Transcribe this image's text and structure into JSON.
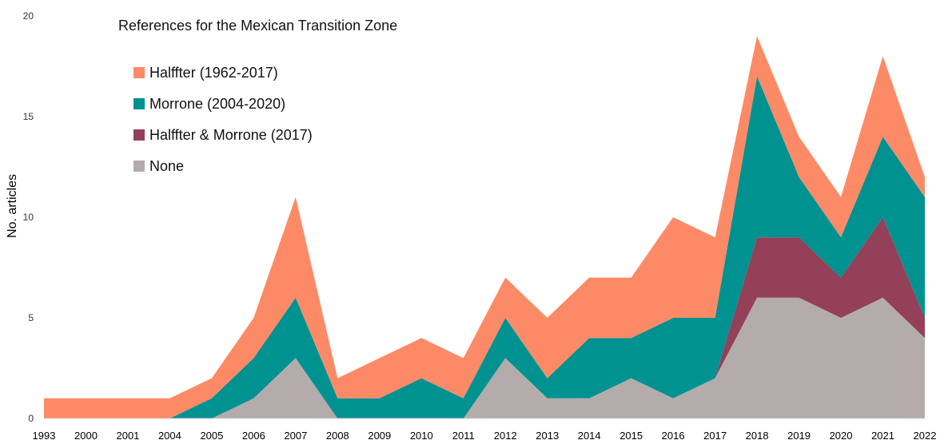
{
  "chart_data": {
    "type": "area",
    "stacked": true,
    "title": "References for the Mexican Transition Zone",
    "xlabel": "",
    "ylabel": "No. articles",
    "ylim": [
      0,
      20
    ],
    "yticks": [
      0,
      5,
      10,
      15,
      20
    ],
    "grid": false,
    "legend_position": "top-left",
    "categories": [
      "1993",
      "2000",
      "2001",
      "2004",
      "2005",
      "2006",
      "2007",
      "2008",
      "2009",
      "2010",
      "2011",
      "2012",
      "2013",
      "2014",
      "2015",
      "2016",
      "2017",
      "2018",
      "2019",
      "2020",
      "2021",
      "2022"
    ],
    "series": [
      {
        "name": "None",
        "color": "#b3acab",
        "values": [
          0,
          0,
          0,
          0,
          0,
          1,
          3,
          0,
          0,
          0,
          0,
          3,
          1,
          1,
          2,
          1,
          2,
          6,
          6,
          5,
          6,
          4
        ]
      },
      {
        "name": "Halffter & Morrone (2017)",
        "color": "#944058",
        "values": [
          0,
          0,
          0,
          0,
          0,
          0,
          0,
          0,
          0,
          0,
          0,
          0,
          0,
          0,
          0,
          0,
          0,
          3,
          3,
          2,
          4,
          1
        ]
      },
      {
        "name": "Morrone (2004-2020)",
        "color": "#009191",
        "values": [
          0,
          0,
          0,
          0,
          1,
          2,
          3,
          1,
          1,
          2,
          1,
          2,
          1,
          3,
          2,
          4,
          3,
          8,
          3,
          2,
          4,
          6
        ]
      },
      {
        "name": "Halffter (1962-2017)",
        "color": "#fd8a66",
        "values": [
          1,
          1,
          1,
          1,
          1,
          2,
          5,
          1,
          2,
          2,
          2,
          2,
          3,
          3,
          3,
          5,
          4,
          2,
          2,
          2,
          4,
          1
        ]
      }
    ],
    "legend_order": [
      "Halffter (1962-2017)",
      "Morrone (2004-2020)",
      "Halffter & Morrone (2017)",
      "None"
    ]
  }
}
